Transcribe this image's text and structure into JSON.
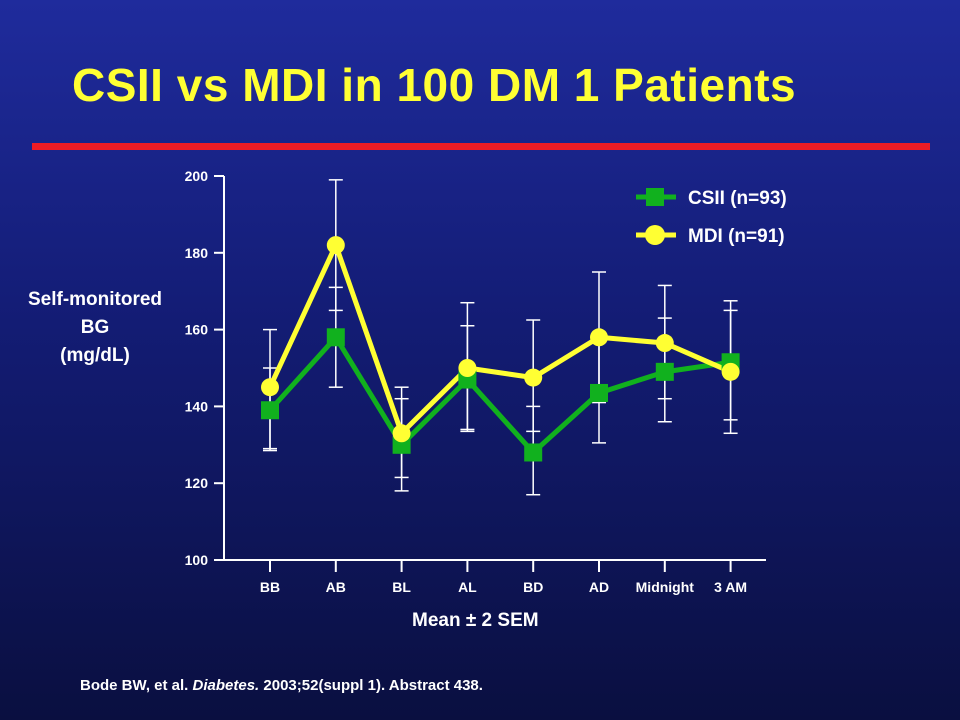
{
  "slide": {
    "title": "CSII vs MDI in 100 DM 1 Patients",
    "note": "Mean ± 2 SEM",
    "citation": {
      "authors": "Bode BW, et al.",
      "journal": "Diabetes.",
      "details": "2003;52(suppl 1). Abstract 438."
    }
  },
  "chart_data": {
    "type": "line",
    "title": "",
    "ylabel": [
      "Self-monitored",
      "BG",
      "(mg/dL)"
    ],
    "xlabel": "",
    "categories": [
      "BB",
      "AB",
      "BL",
      "AL",
      "BD",
      "AD",
      "Midnight",
      "3 AM"
    ],
    "ylim": [
      100,
      200
    ],
    "yticks": [
      100,
      120,
      140,
      160,
      180,
      200
    ],
    "legend_position": "top-right",
    "series": [
      {
        "name": "CSII (n=93)",
        "color": "#11b11e",
        "marker": "square",
        "values": [
          139,
          158,
          130,
          147,
          128,
          143.5,
          149,
          151.5
        ],
        "err_low": [
          129,
          145,
          118,
          134,
          117,
          130.5,
          136,
          136.5
        ],
        "err_high": [
          150,
          171,
          142,
          161,
          140,
          157,
          163,
          165
        ]
      },
      {
        "name": "MDI (n=91)",
        "color": "#ffff33",
        "marker": "circle",
        "values": [
          145,
          182,
          133,
          150,
          147.5,
          158,
          156.5,
          149
        ],
        "err_low": [
          128.5,
          165,
          121.5,
          133.5,
          133.5,
          141,
          142,
          133
        ],
        "err_high": [
          160,
          199,
          145,
          167,
          162.5,
          175,
          171.5,
          167.5
        ]
      }
    ]
  }
}
